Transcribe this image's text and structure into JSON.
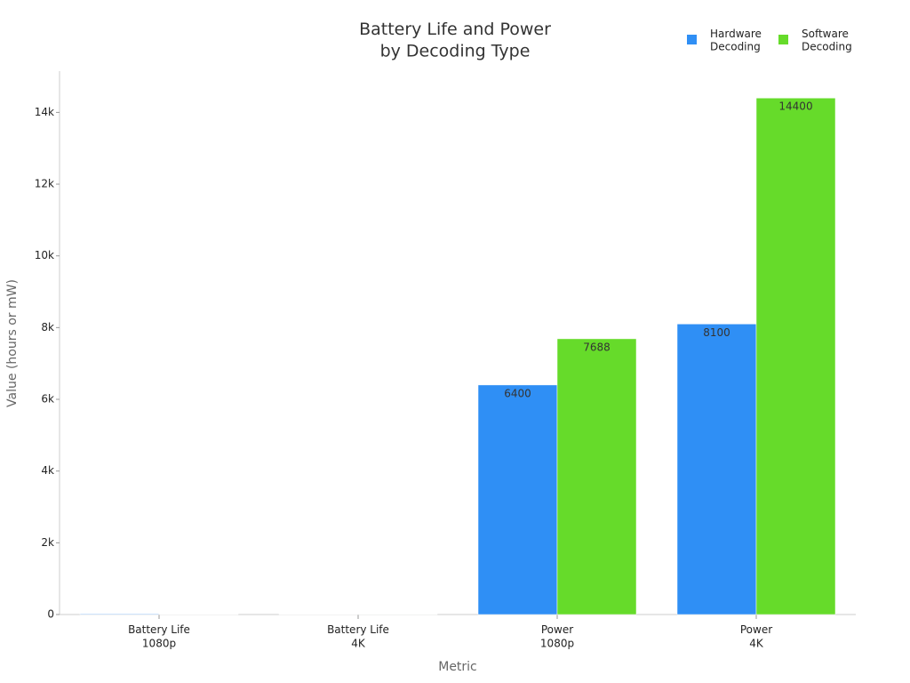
{
  "chart_data": {
    "type": "bar",
    "title": "Battery Life and Power\nby Decoding Type",
    "x_label": "Metric",
    "y_label": "Value (hours or mW)",
    "categories": [
      "Battery Life\n1080p",
      "Battery Life\n4K",
      "Power\n1080p",
      "Power\n4K"
    ],
    "series": [
      {
        "name": "Hardware\nDecoding",
        "color": "#2f8ff5",
        "values": [
          18,
          10,
          6400,
          8100
        ]
      },
      {
        "name": "Software\nDecoding",
        "color": "#66db2a",
        "values": [
          12,
          6,
          7688,
          14400
        ]
      }
    ],
    "ylim": [
      0,
      15150
    ],
    "yticks": [
      0,
      {
        "value": 2000,
        "label": "2k"
      },
      {
        "value": 4000,
        "label": "4k"
      },
      {
        "value": 6000,
        "label": "6k"
      },
      {
        "value": 8000,
        "label": "8k"
      },
      {
        "value": 10000,
        "label": "10k"
      },
      {
        "value": 12000,
        "label": "12k"
      },
      {
        "value": 14000,
        "label": "14k"
      }
    ],
    "legend": "top-right",
    "grid": false
  }
}
